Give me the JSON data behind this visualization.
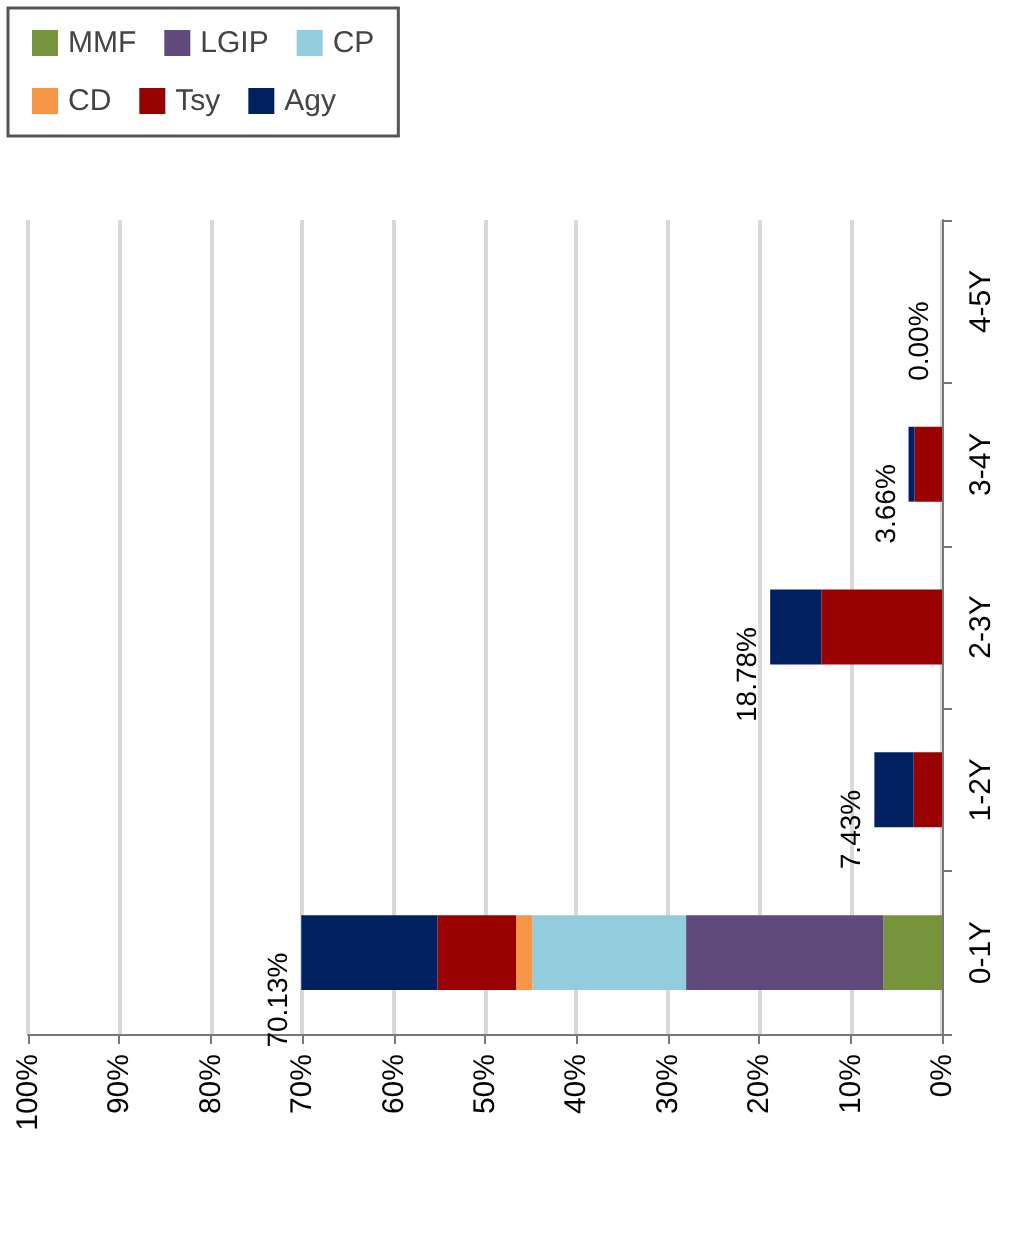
{
  "chart_data": {
    "type": "bar",
    "stacked": true,
    "orientation": "horizontal",
    "categories": [
      "4-5Y",
      "3-4Y",
      "2-3Y",
      "1-2Y",
      "0-1Y"
    ],
    "series": [
      {
        "name": "MMF",
        "color": "#77933c",
        "values": [
          0,
          0,
          0,
          0,
          6.4
        ]
      },
      {
        "name": "LGIP",
        "color": "#604a7b",
        "values": [
          0,
          0,
          0,
          0,
          21.6
        ]
      },
      {
        "name": "CP",
        "color": "#93cddd",
        "values": [
          0,
          0,
          0,
          0,
          16.8
        ]
      },
      {
        "name": "CD",
        "color": "#f79646",
        "values": [
          0,
          0,
          0,
          0,
          1.8
        ]
      },
      {
        "name": "Tsy",
        "color": "#990000",
        "values": [
          0,
          3.0,
          13.2,
          3.1,
          8.6
        ]
      },
      {
        "name": "Agy",
        "color": "#002060",
        "values": [
          0,
          0.66,
          5.6,
          4.3,
          14.9
        ]
      }
    ],
    "totals": [
      "0.00%",
      "3.66%",
      "18.78%",
      "7.43%",
      "70.13%"
    ],
    "xlim": [
      100,
      0
    ],
    "xticks": [
      {
        "value": 0,
        "label": "0%"
      },
      {
        "value": 10,
        "label": "10%"
      },
      {
        "value": 20,
        "label": "20%"
      },
      {
        "value": 30,
        "label": "30%"
      },
      {
        "value": 40,
        "label": "40%"
      },
      {
        "value": 50,
        "label": "50%"
      },
      {
        "value": 60,
        "label": "60%"
      },
      {
        "value": 70,
        "label": "70%"
      },
      {
        "value": 80,
        "label": "80%"
      },
      {
        "value": 90,
        "label": "90%"
      },
      {
        "value": 100,
        "label": "100%"
      }
    ],
    "grid": "x",
    "legend": "top left"
  }
}
